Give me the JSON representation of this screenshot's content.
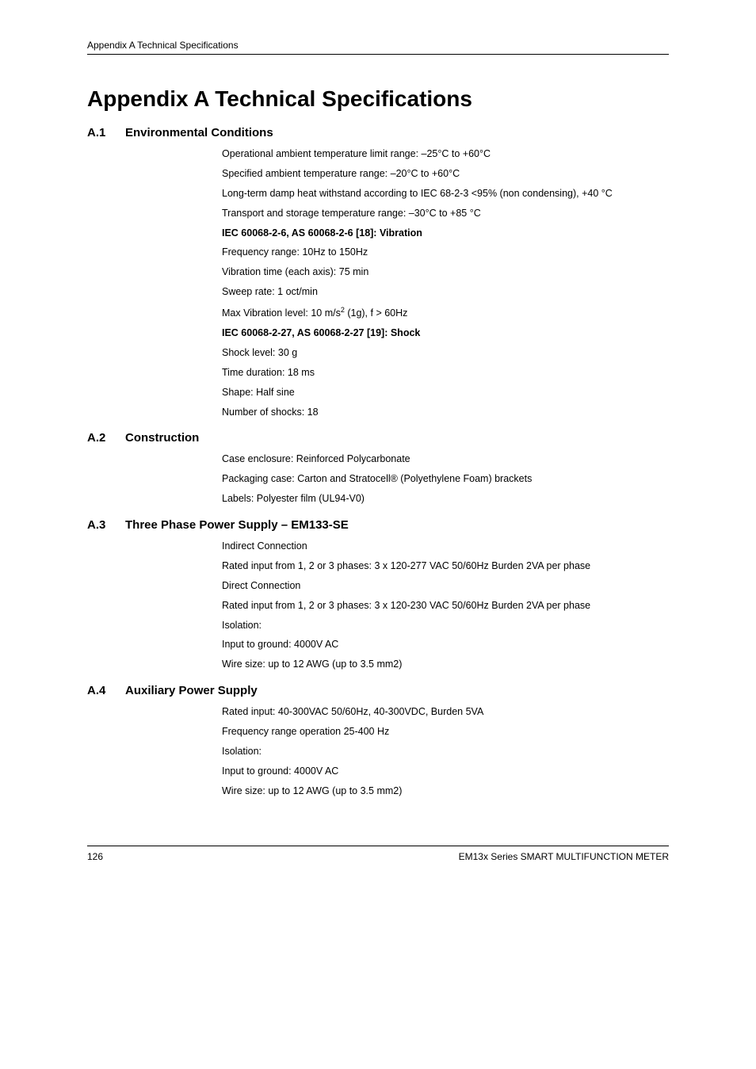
{
  "header": {
    "text": "Appendix  A    Technical Specifications"
  },
  "main_title": "Appendix A   Technical Specifications",
  "sections": {
    "a1": {
      "num": "A.1",
      "title": "Environmental Conditions",
      "lines": {
        "l1": "Operational ambient temperature limit range: –25°C to +60°C",
        "l2": "Specified ambient temperature range: –20°C to +60°C",
        "l3": "Long-term damp heat withstand according to IEC 68-2-3 <95% (non condensing), +40 °C",
        "l4": "Transport and storage temperature range: –30°C to +85 °C",
        "h1": "IEC 60068-2-6, AS 60068-2-6 [18]: Vibration",
        "l5": "Frequency range: 10Hz to 150Hz",
        "l6": "Vibration time (each axis): 75 min",
        "l7": "Sweep rate: 1 oct/min",
        "l8_pre": "Max Vibration level: 10 m/s",
        "l8_sup": "2",
        "l8_post": " (1g), f > 60Hz",
        "h2": "IEC 60068-2-27, AS 60068-2-27 [19]: Shock",
        "l9": "Shock level: 30 g",
        "l10": "Time duration: 18 ms",
        "l11": "Shape: Half sine",
        "l12": "Number of shocks: 18"
      }
    },
    "a2": {
      "num": "A.2",
      "title": "Construction",
      "lines": {
        "l1": "Case enclosure: Reinforced Polycarbonate",
        "l2": "Packaging case: Carton and Stratocell® (Polyethylene Foam) brackets",
        "l3": "Labels: Polyester film (UL94-V0)"
      }
    },
    "a3": {
      "num": "A.3",
      "title": "Three Phase Power Supply – EM133-SE",
      "lines": {
        "l1": "Indirect Connection",
        "l2": "Rated input from 1, 2 or 3 phases: 3 x 120-277 VAC 50/60Hz Burden 2VA per phase",
        "l3": "Direct Connection",
        "l4": "Rated input from 1, 2 or 3 phases: 3 x 120-230 VAC 50/60Hz Burden 2VA per phase",
        "l5": "Isolation:",
        "l6": "Input to ground: 4000V AC",
        "l7": "Wire size: up to 12 AWG (up to 3.5 mm2)"
      }
    },
    "a4": {
      "num": "A.4",
      "title": "Auxiliary Power Supply",
      "lines": {
        "l1": "Rated input: 40-300VAC 50/60Hz, 40-300VDC, Burden 5VA",
        "l2": "Frequency range operation 25-400 Hz",
        "l3": "Isolation:",
        "l4": "Input to ground: 4000V AC",
        "l5": "Wire size: up to 12 AWG (up to 3.5 mm2)"
      }
    }
  },
  "footer": {
    "page": "126",
    "right": "EM13x Series SMART MULTIFUNCTION METER"
  }
}
